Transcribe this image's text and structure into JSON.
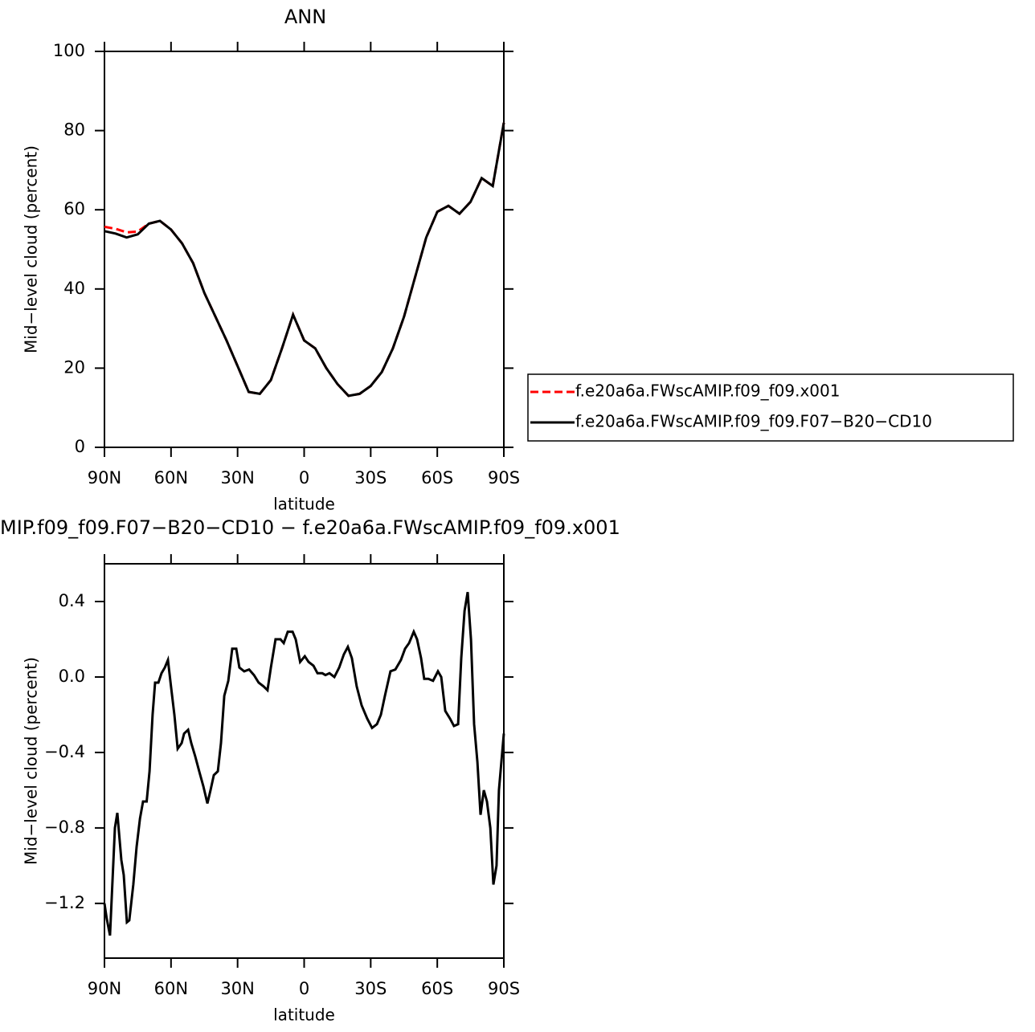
{
  "chart_data": [
    {
      "type": "line",
      "title": "ANN",
      "xlabel": "latitude",
      "ylabel": "Mid−level cloud (percent)",
      "x": [
        90,
        85,
        80,
        75,
        70,
        65,
        60,
        55,
        50,
        45,
        40,
        35,
        30,
        25,
        20,
        15,
        10,
        5,
        0,
        -5,
        -10,
        -15,
        -20,
        -25,
        -30,
        -35,
        -40,
        -45,
        -50,
        -55,
        -60,
        -65,
        -70,
        -75,
        -80,
        -85,
        -90
      ],
      "series": [
        {
          "name": "f.e20a6a.FWscAMIP.f09_f09.x001",
          "color": "#ff0000",
          "line_style": "dashed",
          "values": [
            55.7,
            55.2,
            54.3,
            54.5,
            56.5,
            57.2,
            55,
            51.5,
            46.5,
            39,
            33,
            27,
            20.5,
            14,
            13.5,
            17,
            25,
            33.5,
            27,
            25,
            20,
            16,
            13,
            13.5,
            15.5,
            19,
            25,
            33,
            43,
            53,
            59.5,
            61,
            59,
            62,
            68,
            66,
            82
          ]
        },
        {
          "name": "f.e20a6a.FWscAMIP.f09_f09.F07−B20−CD10",
          "color": "#000000",
          "line_style": "solid",
          "values": [
            54.6,
            54,
            53,
            53.8,
            56.5,
            57.2,
            55,
            51.5,
            46.5,
            39,
            33,
            27,
            20.5,
            14,
            13.5,
            17,
            25,
            33.5,
            27,
            25,
            20,
            16,
            13,
            13.5,
            15.5,
            19,
            25,
            33,
            43,
            53,
            59.5,
            61,
            59,
            62,
            68,
            66,
            82
          ]
        }
      ],
      "xlim": [
        90,
        -90
      ],
      "xticks": [
        {
          "value": 90,
          "label": "90N"
        },
        {
          "value": 60,
          "label": "60N"
        },
        {
          "value": 30,
          "label": "30N"
        },
        0,
        {
          "value": -30,
          "label": "30S"
        },
        {
          "value": -60,
          "label": "60S"
        },
        {
          "value": -90,
          "label": "90S"
        }
      ],
      "ylim": [
        0,
        100
      ],
      "yticks": [
        0,
        20,
        40,
        60,
        80,
        100
      ],
      "legend": "right"
    },
    {
      "type": "line",
      "title": "MIP.f09_f09.F07−B20−CD10 − f.e20a6a.FWscAMIP.f09_f09.x001",
      "xlabel": "latitude",
      "ylabel": "Mid−level cloud (percent)",
      "x": [
        90,
        89,
        87.5,
        85.3,
        84.2,
        82.4,
        81.3,
        79.9,
        78.8,
        77,
        75.5,
        74,
        72.6,
        71,
        69.7,
        68.3,
        67.2,
        65.7,
        64.3,
        62.8,
        61.4,
        60,
        58.5,
        57,
        55.2,
        54.1,
        52.3,
        50.9,
        49.1,
        47.3,
        45.4,
        43.6,
        42.2,
        40.7,
        38.9,
        37.5,
        36,
        34.2,
        32.4,
        30.6,
        29.2,
        27,
        24.8,
        22.6,
        20.5,
        18.3,
        16.5,
        15,
        12.9,
        10.7,
        9.2,
        7.4,
        5.2,
        3.8,
        1.8,
        -0.3,
        -2,
        -4.2,
        -6,
        -8.2,
        -9.6,
        -11.4,
        -13.6,
        -15.8,
        -17.9,
        -19.7,
        -21.5,
        -23.7,
        -25.9,
        -28.4,
        -30.6,
        -32.8,
        -34.6,
        -36.4,
        -38.9,
        -41.1,
        -43.6,
        -45.5,
        -47.3,
        -49.4,
        -50.9,
        -52.7,
        -54.1,
        -56,
        -58.1,
        -60.3,
        -61.8,
        -63.6,
        -65.7,
        -67.5,
        -69.4,
        -70.8,
        -72.3,
        -73.7,
        -75.2,
        -76.6,
        -78.1,
        -79.5,
        -81,
        -82.4,
        -83.9,
        -85.3,
        -86.7,
        -87.8,
        -90
      ],
      "values": [
        -1.2,
        -1.28,
        -1.37,
        -0.8,
        -0.72,
        -0.97,
        -1.05,
        -1.3,
        -1.29,
        -1.1,
        -0.9,
        -0.75,
        -0.66,
        -0.66,
        -0.5,
        -0.2,
        -0.03,
        -0.03,
        0.02,
        0.05,
        0.09,
        -0.05,
        -0.2,
        -0.38,
        -0.35,
        -0.3,
        -0.28,
        -0.35,
        -0.42,
        -0.5,
        -0.58,
        -0.67,
        -0.6,
        -0.52,
        -0.5,
        -0.35,
        -0.1,
        -0.02,
        0.15,
        0.15,
        0.05,
        0.03,
        0.04,
        0.01,
        -0.03,
        -0.05,
        -0.07,
        0.05,
        0.2,
        0.2,
        0.18,
        0.24,
        0.24,
        0.2,
        0.08,
        0.11,
        0.08,
        0.06,
        0.02,
        0.02,
        0.01,
        0.02,
        0.0,
        0.05,
        0.12,
        0.16,
        0.1,
        -0.05,
        -0.15,
        -0.22,
        -0.27,
        -0.25,
        -0.2,
        -0.1,
        0.03,
        0.04,
        0.09,
        0.15,
        0.18,
        0.24,
        0.2,
        0.1,
        -0.01,
        -0.01,
        -0.02,
        0.03,
        0.0,
        -0.18,
        -0.22,
        -0.26,
        -0.25,
        0.1,
        0.35,
        0.45,
        0.2,
        -0.25,
        -0.45,
        -0.73,
        -0.6,
        -0.66,
        -0.8,
        -1.1,
        -1.0,
        -0.6,
        -0.3
      ],
      "color": "#000000",
      "line_style": "solid",
      "xlim": [
        90,
        -90
      ],
      "xticks": [
        {
          "value": 90,
          "label": "90N"
        },
        {
          "value": 60,
          "label": "60N"
        },
        {
          "value": 30,
          "label": "30N"
        },
        0,
        {
          "value": -30,
          "label": "30S"
        },
        {
          "value": -60,
          "label": "60S"
        },
        {
          "value": -90,
          "label": "90S"
        }
      ],
      "ylim": [
        -1.49,
        0.6
      ],
      "yticks": [
        {
          "value": -1.2,
          "label": "−1.2"
        },
        {
          "value": -0.8,
          "label": "−0.8"
        },
        {
          "value": -0.4,
          "label": "−0.4"
        },
        {
          "value": 0,
          "label": "0.0"
        },
        0.4
      ]
    }
  ]
}
